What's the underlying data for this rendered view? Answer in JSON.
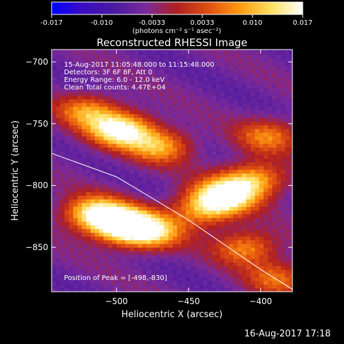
{
  "chart_data": {
    "type": "heatmap",
    "title": "Reconstructed RHESSI Image",
    "xlabel": "Heliocentric X (arcsec)",
    "ylabel": "Heliocentric Y (arcsec)",
    "x_ticks": [
      -500,
      -450,
      -400
    ],
    "y_ticks": [
      -700,
      -750,
      -800,
      -850
    ],
    "xlim": [
      -545,
      -378
    ],
    "ylim": [
      -886,
      -690
    ],
    "colorbar": {
      "min": -0.017,
      "max": 0.017,
      "ticks": [
        "-0.017",
        "-0.010",
        "-0.0033",
        "0.0033",
        "0.010",
        "0.017"
      ],
      "label": "(photons cm⁻² s⁻¹ asec⁻²)",
      "colormap": [
        "#0000ff",
        "#3a0dc0",
        "#4a1aa0",
        "#7a2a9a",
        "#b02020",
        "#e05010",
        "#ff9a10",
        "#ffe060",
        "#ffffff"
      ]
    },
    "annotations": [
      "15-Aug-2017 11:05:48.000 to 11:15:48.000",
      "Detectors: 3F 6F 8F, Att 0",
      "Energy Range: 6.0 - 12.0 keV",
      "Clean     Total counts: 4.47E+04"
    ],
    "peak_text": "Position of Peak = [-498,-830]",
    "peak": [
      -498,
      -830
    ],
    "sources": [
      {
        "x": -495,
        "y": -832,
        "intensity": 1.0
      },
      {
        "x": -515,
        "y": -822,
        "intensity": 0.75
      },
      {
        "x": -475,
        "y": -838,
        "intensity": 0.6
      },
      {
        "x": -497,
        "y": -755,
        "intensity": 0.85
      },
      {
        "x": -520,
        "y": -740,
        "intensity": 0.5
      },
      {
        "x": -470,
        "y": -768,
        "intensity": 0.55
      },
      {
        "x": -425,
        "y": -808,
        "intensity": 0.85
      },
      {
        "x": -405,
        "y": -795,
        "intensity": 0.6
      },
      {
        "x": -440,
        "y": -820,
        "intensity": 0.5
      },
      {
        "x": -395,
        "y": -760,
        "intensity": 0.45
      },
      {
        "x": -410,
        "y": -850,
        "intensity": 0.5
      },
      {
        "x": -388,
        "y": -875,
        "intensity": 0.4
      }
    ],
    "limb": [
      [
        -545,
        -774
      ],
      [
        -500,
        -793
      ],
      [
        -450,
        -828
      ],
      [
        -400,
        -868
      ],
      [
        -378,
        -884
      ]
    ]
  },
  "footer": {
    "timestamp": "16-Aug-2017 17:18"
  }
}
